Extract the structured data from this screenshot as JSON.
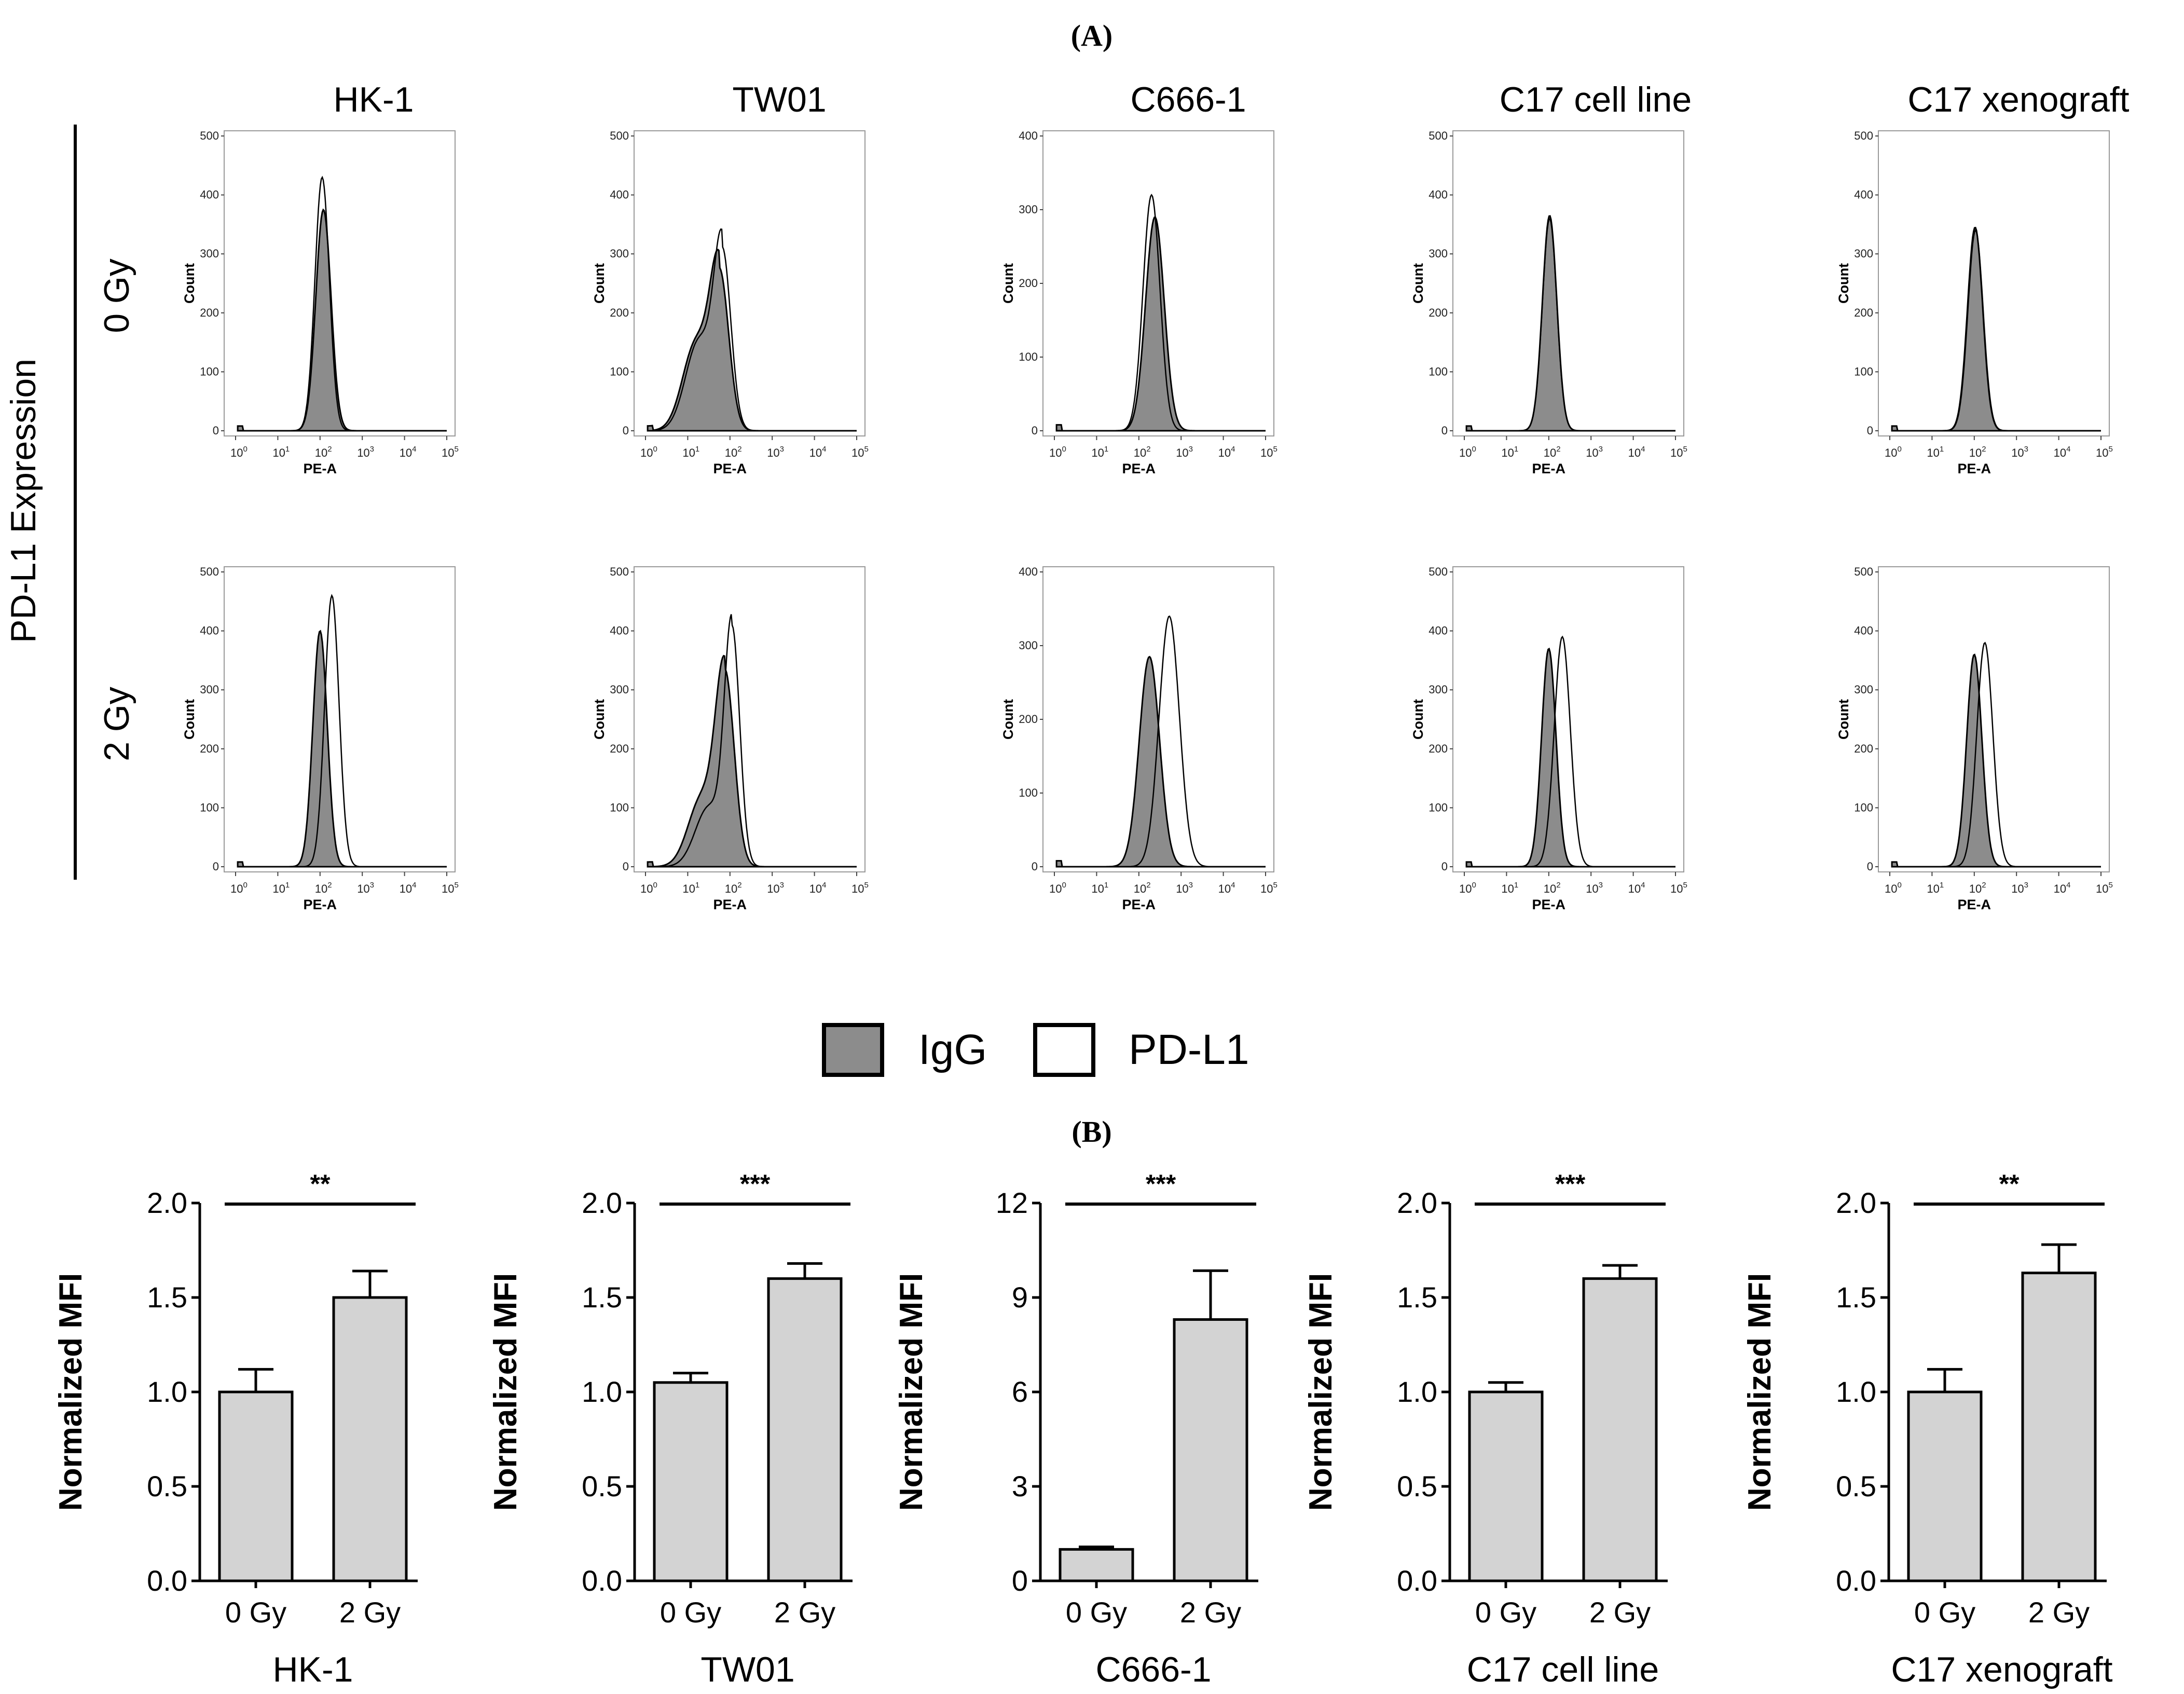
{
  "figure": {
    "panel_a_label": "(A)",
    "panel_b_label": "(B)",
    "side_label": "PD-L1 Expression",
    "row_labels": [
      "0 Gy",
      "2 Gy"
    ],
    "column_titles": [
      "HK-1",
      "TW01",
      "C666-1",
      "C17 cell line",
      "C17 xenograft"
    ]
  },
  "legend": {
    "items": [
      {
        "label": "IgG",
        "fill": "#8c8c8c"
      },
      {
        "label": "PD-L1",
        "fill": "#ffffff"
      }
    ]
  },
  "chart_data": [
    {
      "type": "area",
      "panel": "A",
      "xlabel": "PE-A",
      "ylabel": "Count",
      "x_scale": "log",
      "xlim": [
        0,
        100000
      ],
      "x_ticks": [
        "10^0",
        "10^1",
        "10^2",
        "10^3",
        "10^4",
        "10^5"
      ],
      "series_colors": {
        "IgG": "#8c8c8c",
        "PD-L1": "#ffffff"
      },
      "histograms": [
        {
          "cell_line": "HK-1",
          "dose": "0 Gy",
          "ylim": [
            0,
            500
          ],
          "y_ticks": [
            0,
            100,
            200,
            300,
            400,
            500
          ],
          "series": [
            {
              "name": "IgG",
              "peak_log10": 2.08,
              "peak_count": 375,
              "sigma": 0.18
            },
            {
              "name": "PD-L1",
              "peak_log10": 2.05,
              "peak_count": 430,
              "sigma": 0.17
            }
          ]
        },
        {
          "cell_line": "TW01",
          "dose": "0 Gy",
          "ylim": [
            0,
            500
          ],
          "y_ticks": [
            0,
            100,
            200,
            300,
            400,
            500
          ],
          "series": [
            {
              "name": "IgG",
              "peak_log10": 1.75,
              "peak_count": 270,
              "sigma": 0.22,
              "tail": 0.55
            },
            {
              "name": "PD-L1",
              "peak_log10": 1.82,
              "peak_count": 305,
              "sigma": 0.2,
              "tail": 0.5
            }
          ]
        },
        {
          "cell_line": "C666-1",
          "dose": "0 Gy",
          "ylim": [
            0,
            400
          ],
          "y_ticks": [
            0,
            100,
            200,
            300,
            400
          ],
          "series": [
            {
              "name": "IgG",
              "peak_log10": 2.38,
              "peak_count": 290,
              "sigma": 0.22
            },
            {
              "name": "PD-L1",
              "peak_log10": 2.3,
              "peak_count": 320,
              "sigma": 0.2
            }
          ]
        },
        {
          "cell_line": "C17 cell line",
          "dose": "0 Gy",
          "ylim": [
            0,
            500
          ],
          "y_ticks": [
            0,
            100,
            200,
            300,
            400,
            500
          ],
          "series": [
            {
              "name": "IgG",
              "peak_log10": 2.02,
              "peak_count": 365,
              "sigma": 0.17
            },
            {
              "name": "PD-L1",
              "peak_log10": 2.02,
              "peak_count": 360,
              "sigma": 0.17
            }
          ]
        },
        {
          "cell_line": "C17 xenograft",
          "dose": "0 Gy",
          "ylim": [
            0,
            500
          ],
          "y_ticks": [
            0,
            100,
            200,
            300,
            400,
            500
          ],
          "series": [
            {
              "name": "IgG",
              "peak_log10": 2.02,
              "peak_count": 345,
              "sigma": 0.18
            },
            {
              "name": "PD-L1",
              "peak_log10": 2.03,
              "peak_count": 340,
              "sigma": 0.18
            }
          ]
        },
        {
          "cell_line": "HK-1",
          "dose": "2 Gy",
          "ylim": [
            0,
            500
          ],
          "y_ticks": [
            0,
            100,
            200,
            300,
            400,
            500
          ],
          "series": [
            {
              "name": "IgG",
              "peak_log10": 2.0,
              "peak_count": 400,
              "sigma": 0.17
            },
            {
              "name": "PD-L1",
              "peak_log10": 2.28,
              "peak_count": 460,
              "sigma": 0.17
            }
          ]
        },
        {
          "cell_line": "TW01",
          "dose": "2 Gy",
          "ylim": [
            0,
            500
          ],
          "y_ticks": [
            0,
            100,
            200,
            300,
            400,
            500
          ],
          "series": [
            {
              "name": "IgG",
              "peak_log10": 1.88,
              "peak_count": 330,
              "sigma": 0.22,
              "tail": 0.35
            },
            {
              "name": "PD-L1",
              "peak_log10": 2.05,
              "peak_count": 405,
              "sigma": 0.18,
              "tail": 0.25
            }
          ]
        },
        {
          "cell_line": "C666-1",
          "dose": "2 Gy",
          "ylim": [
            0,
            400
          ],
          "y_ticks": [
            0,
            100,
            200,
            300,
            400
          ],
          "series": [
            {
              "name": "IgG",
              "peak_log10": 2.25,
              "peak_count": 285,
              "sigma": 0.24
            },
            {
              "name": "PD-L1",
              "peak_log10": 2.72,
              "peak_count": 340,
              "sigma": 0.24
            }
          ]
        },
        {
          "cell_line": "C17 cell line",
          "dose": "2 Gy",
          "ylim": [
            0,
            500
          ],
          "y_ticks": [
            0,
            100,
            200,
            300,
            400,
            500
          ],
          "series": [
            {
              "name": "IgG",
              "peak_log10": 2.0,
              "peak_count": 370,
              "sigma": 0.17
            },
            {
              "name": "PD-L1",
              "peak_log10": 2.32,
              "peak_count": 390,
              "sigma": 0.19
            }
          ]
        },
        {
          "cell_line": "C17 xenograft",
          "dose": "2 Gy",
          "ylim": [
            0,
            500
          ],
          "y_ticks": [
            0,
            100,
            200,
            300,
            400,
            500
          ],
          "series": [
            {
              "name": "IgG",
              "peak_log10": 2.0,
              "peak_count": 360,
              "sigma": 0.18
            },
            {
              "name": "PD-L1",
              "peak_log10": 2.25,
              "peak_count": 380,
              "sigma": 0.19
            }
          ]
        }
      ]
    },
    {
      "type": "bar",
      "panel": "B",
      "ylabel": "Normalized MFI",
      "categories": [
        "0 Gy",
        "2 Gy"
      ],
      "bar_color": "#d3d3d3",
      "charts": [
        {
          "title": "HK-1",
          "ylim": [
            0,
            2.0
          ],
          "y_ticks": [
            "0.0",
            "0.5",
            "1.0",
            "1.5",
            "2.0"
          ],
          "values": [
            1.0,
            1.5
          ],
          "errors": [
            0.12,
            0.14
          ],
          "significance": "**"
        },
        {
          "title": "TW01",
          "ylim": [
            0,
            2.0
          ],
          "y_ticks": [
            "0.0",
            "0.5",
            "1.0",
            "1.5",
            "2.0"
          ],
          "values": [
            1.05,
            1.6
          ],
          "errors": [
            0.05,
            0.08
          ],
          "significance": "***"
        },
        {
          "title": "C666-1",
          "ylim": [
            0,
            12
          ],
          "y_ticks": [
            "0",
            "3",
            "6",
            "9",
            "12"
          ],
          "values": [
            1.0,
            8.3
          ],
          "errors": [
            0.08,
            1.55
          ],
          "significance": "***"
        },
        {
          "title": "C17 cell line",
          "ylim": [
            0,
            2.0
          ],
          "y_ticks": [
            "0.0",
            "0.5",
            "1.0",
            "1.5",
            "2.0"
          ],
          "values": [
            1.0,
            1.6
          ],
          "errors": [
            0.05,
            0.07
          ],
          "significance": "***"
        },
        {
          "title": "C17 xenograft",
          "ylim": [
            0,
            2.0
          ],
          "y_ticks": [
            "0.0",
            "0.5",
            "1.0",
            "1.5",
            "2.0"
          ],
          "values": [
            1.0,
            1.63
          ],
          "errors": [
            0.12,
            0.15
          ],
          "significance": "**"
        }
      ]
    }
  ]
}
